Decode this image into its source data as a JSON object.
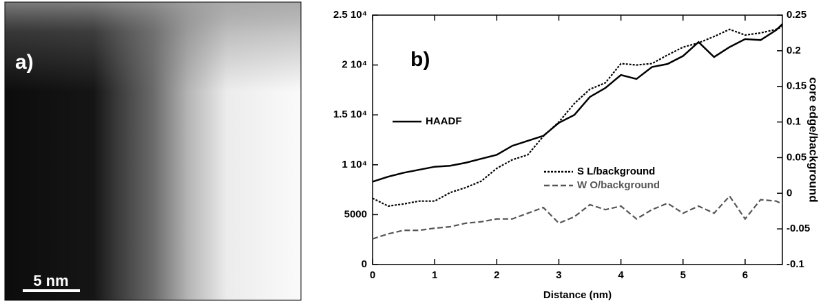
{
  "image_panel": {
    "label": "a)",
    "scale_bar": "5 nm"
  },
  "chart_data": {
    "type": "line",
    "annotation": "b)",
    "xlabel": "Distance (nm)",
    "y2label": "core edge/background",
    "xlim": [
      0,
      6.6
    ],
    "xticks": [
      0,
      1,
      2,
      3,
      4,
      5,
      6
    ],
    "ylim": [
      0,
      25000
    ],
    "yticks": [
      0,
      5000,
      {
        "value": 10000,
        "label": "1 10⁴"
      },
      {
        "value": 15000,
        "label": "1.5 10⁴"
      },
      {
        "value": 20000,
        "label": "2 10⁴"
      },
      {
        "value": 25000,
        "label": "2.5 10⁴"
      }
    ],
    "y2lim": [
      -0.1,
      0.25
    ],
    "y2ticks": [
      -0.1,
      -0.05,
      0,
      0.05,
      0.1,
      0.15,
      0.2,
      0.25
    ],
    "x": [
      0,
      0.25,
      0.5,
      0.75,
      1,
      1.25,
      1.5,
      1.75,
      2,
      2.25,
      2.5,
      2.75,
      3,
      3.25,
      3.5,
      3.75,
      4,
      4.25,
      4.5,
      4.75,
      5,
      5.25,
      5.5,
      5.75,
      6,
      6.25,
      6.5,
      6.6
    ],
    "series": [
      {
        "name": "HAADF",
        "color": "#000000",
        "line_style": "solid",
        "axis": "y",
        "values": [
          8300,
          8800,
          9200,
          9500,
          9800,
          9900,
          10200,
          10600,
          11000,
          11900,
          12400,
          12900,
          14200,
          15000,
          16800,
          17700,
          19000,
          18600,
          19800,
          20100,
          20900,
          22300,
          20800,
          21800,
          22600,
          22500,
          23500,
          24100
        ]
      },
      {
        "name": "S L/background",
        "color": "#000000",
        "line_style": "dotted",
        "axis": "y2",
        "values": [
          -0.007,
          -0.018,
          -0.015,
          -0.011,
          -0.011,
          0.001,
          0.008,
          0.017,
          0.035,
          0.047,
          0.054,
          0.08,
          0.1,
          0.126,
          0.146,
          0.155,
          0.182,
          0.18,
          0.182,
          0.194,
          0.205,
          0.211,
          0.22,
          0.23,
          0.222,
          0.225,
          0.23,
          0.234
        ]
      },
      {
        "name": "W O/background",
        "color": "#555555",
        "line_style": "dashed",
        "axis": "y2",
        "values": [
          -0.064,
          -0.057,
          -0.052,
          -0.052,
          -0.049,
          -0.047,
          -0.042,
          -0.04,
          -0.036,
          -0.036,
          -0.028,
          -0.02,
          -0.042,
          -0.033,
          -0.016,
          -0.023,
          -0.018,
          -0.036,
          -0.023,
          -0.014,
          -0.028,
          -0.018,
          -0.028,
          -0.004,
          -0.036,
          -0.009,
          -0.011,
          -0.015
        ]
      }
    ]
  }
}
